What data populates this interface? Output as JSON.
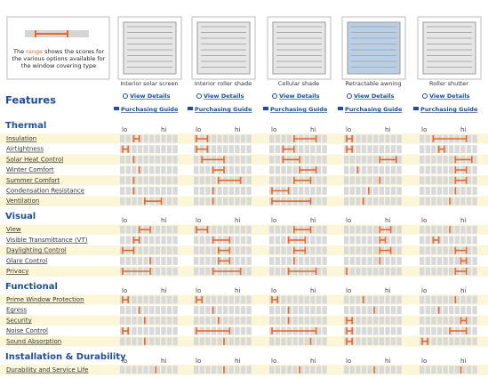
{
  "legend": {
    "before": "The",
    "highlight": "range",
    "after": "shows the scores for the various options available for the window covering type"
  },
  "heading": "Features",
  "links": {
    "view": "View Details",
    "guide": "Purchasing Guide"
  },
  "scale": {
    "lo": "lo",
    "hi": "hi"
  },
  "products": [
    "Interior solar screen",
    "Interior roller shade",
    "Cellular shade",
    "Retractable awning",
    "Roller shutter"
  ],
  "sections": [
    {
      "title": "Thermal",
      "rows": [
        {
          "label": "Insulation",
          "ranges": [
            [
              2,
              3
            ],
            [
              0,
              2
            ],
            [
              4,
              8
            ],
            [
              0,
              1
            ],
            [
              2,
              8
            ]
          ]
        },
        {
          "label": "Airtightness",
          "ranges": [
            [
              0,
              1
            ],
            [
              0,
              2
            ],
            [
              2,
              4
            ],
            [
              0,
              1
            ],
            [
              3,
              4
            ]
          ]
        },
        {
          "label": "Solar Heat Control",
          "ranges": [
            [
              2,
              2
            ],
            [
              1,
              5
            ],
            [
              2,
              5
            ],
            [
              6,
              9
            ],
            [
              6,
              9
            ]
          ]
        },
        {
          "label": "Winter Comfort",
          "ranges": [
            [
              3,
              3
            ],
            [
              3,
              5
            ],
            [
              5,
              8
            ],
            [
              2,
              2
            ],
            [
              6,
              8
            ]
          ]
        },
        {
          "label": "Summer Comfort",
          "ranges": [
            [
              2,
              2
            ],
            [
              4,
              8
            ],
            [
              4,
              7
            ],
            [
              6,
              6
            ],
            [
              6,
              8
            ]
          ]
        },
        {
          "label": "Condensation Resistance",
          "ranges": [
            [
              2,
              2
            ],
            [
              3,
              3
            ],
            [
              0,
              3
            ],
            [
              4,
              4
            ],
            [
              6,
              6
            ]
          ]
        },
        {
          "label": "Ventilation",
          "ranges": [
            [
              4,
              7
            ],
            [
              3,
              3
            ],
            [
              0,
              7
            ],
            [
              3,
              3
            ],
            [
              5,
              5
            ]
          ]
        }
      ]
    },
    {
      "title": "Visual",
      "rows": [
        {
          "label": "View",
          "ranges": [
            [
              3,
              5
            ],
            [
              0,
              2
            ],
            [
              4,
              7
            ],
            [
              6,
              8
            ],
            [
              5,
              5
            ]
          ]
        },
        {
          "label": "Visible Transmittance (VT)",
          "ranges": [
            [
              2,
              3
            ],
            [
              3,
              6
            ],
            [
              3,
              6
            ],
            [
              6,
              7
            ],
            [
              2,
              3
            ]
          ]
        },
        {
          "label": "Daylighting Control",
          "ranges": [
            [
              0,
              2
            ],
            [
              4,
              6
            ],
            [
              4,
              6
            ],
            [
              6,
              8
            ],
            [
              6,
              8
            ]
          ]
        },
        {
          "label": "Glare Control",
          "ranges": [
            [
              5,
              5
            ],
            [
              4,
              6
            ],
            [
              4,
              4
            ],
            [
              6,
              6
            ],
            [
              7,
              8
            ]
          ]
        },
        {
          "label": "Privacy",
          "ranges": [
            [
              0,
              5
            ],
            [
              3,
              8
            ],
            [
              3,
              8
            ],
            [
              0,
              0
            ],
            [
              6,
              8
            ]
          ]
        }
      ]
    },
    {
      "title": "Functional",
      "rows": [
        {
          "label": "Prime Window Protection",
          "ranges": [
            [
              0,
              1
            ],
            [
              0,
              1
            ],
            [
              0,
              1
            ],
            [
              3,
              3
            ],
            [
              6,
              6
            ]
          ]
        },
        {
          "label": "Egress",
          "ranges": [
            [
              3,
              3
            ],
            [
              3,
              3
            ],
            [
              3,
              3
            ],
            [
              5,
              5
            ],
            [
              3,
              3
            ]
          ]
        },
        {
          "label": "Security",
          "ranges": [
            [
              4,
              4
            ],
            [
              4,
              4
            ],
            [
              3,
              3
            ],
            [
              0,
              1
            ],
            [
              7,
              8
            ]
          ]
        },
        {
          "label": "Noise Control",
          "ranges": [
            [
              0,
              1
            ],
            [
              0,
              6
            ],
            [
              0,
              8
            ],
            [
              0,
              1
            ],
            [
              5,
              8
            ]
          ]
        },
        {
          "label": "Sound Absorption",
          "ranges": [
            [
              4,
              4
            ],
            [
              5,
              5
            ],
            [
              7,
              7
            ],
            [
              0,
              1
            ],
            [
              0,
              1
            ]
          ]
        }
      ]
    },
    {
      "title": "Installation & Durability",
      "rows": [
        {
          "label": "Durability and Service Life",
          "ranges": [
            [
              6,
              6
            ],
            [
              5,
              5
            ],
            [
              5,
              5
            ],
            [
              5,
              5
            ],
            [
              7,
              7
            ]
          ]
        }
      ]
    }
  ]
}
